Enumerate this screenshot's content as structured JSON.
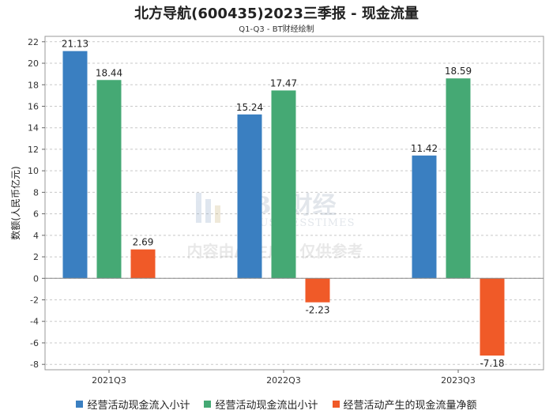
{
  "chart_data": {
    "type": "bar",
    "title": "北方导航(600435)2023三季报 - 现金流量",
    "subtitle": "Q1-Q3 - BT财经绘制",
    "ylabel": "数额(人民币亿元)",
    "xlabel": "",
    "categories": [
      "2021Q3",
      "2022Q3",
      "2023Q3"
    ],
    "ylim": [
      -8.5,
      22.5
    ],
    "yticks": [
      -8,
      -6,
      -4,
      -2,
      0,
      2,
      4,
      6,
      8,
      10,
      12,
      14,
      16,
      18,
      20,
      22
    ],
    "grid": true,
    "legend_position": "bottom",
    "series": [
      {
        "name": "经营活动现金流入小计",
        "color": "#3a7fc1",
        "values": [
          21.13,
          15.24,
          11.42
        ],
        "labels": [
          "21.13",
          "15.24",
          "11.42"
        ]
      },
      {
        "name": "经营活动现金流出小计",
        "color": "#45a974",
        "values": [
          18.44,
          17.47,
          18.59
        ],
        "labels": [
          "18.44",
          "17.47",
          "18.59"
        ]
      },
      {
        "name": "经营活动产生的现金流量净额",
        "color": "#f05a28",
        "values": [
          2.69,
          -2.23,
          -7.18
        ],
        "labels": [
          "2.69",
          "-2.23",
          "-7.18"
        ]
      }
    ]
  },
  "watermark": {
    "logo_text": "BT财经",
    "logo_sub": "BUSINESSTIMES",
    "notice": "内容由AI生成，仅供参考"
  }
}
